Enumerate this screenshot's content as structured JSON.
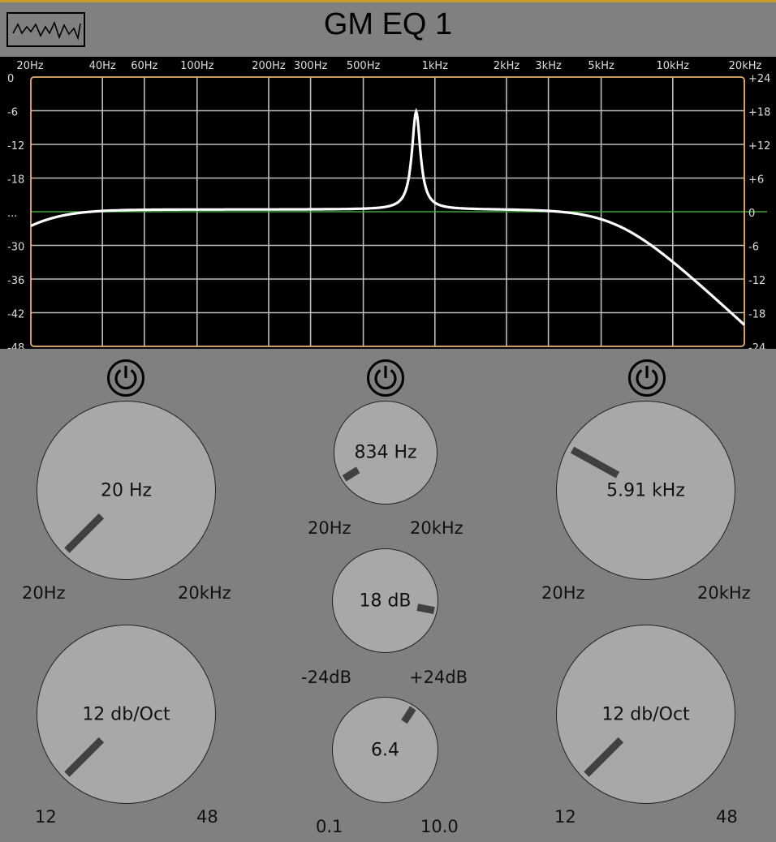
{
  "header": {
    "title": "GM EQ 1",
    "logo_icon": "waveform-icon"
  },
  "graph": {
    "freq_labels": [
      "20Hz",
      "40Hz",
      "60Hz",
      "100Hz",
      "200Hz",
      "300Hz",
      "500Hz",
      "1kHz",
      "2kHz",
      "3kHz",
      "5kHz",
      "10kHz",
      "20kHz"
    ],
    "db_left_labels": [
      "0",
      "-6",
      "-12",
      "-18",
      "...",
      "-30",
      "-36",
      "-42",
      "-48"
    ],
    "db_right_labels": [
      "+24",
      "+18",
      "+12",
      "+6",
      "0",
      "-6",
      "-12",
      "-18",
      "-24"
    ],
    "colors": {
      "grid": "#bdbdbd",
      "curve": "#ffffff",
      "zero_line": "#3aa63a",
      "frame": "#e8b070",
      "background": "#000000"
    }
  },
  "bands": {
    "low": {
      "power_icon": "power-icon",
      "freq": {
        "value": "20 Hz",
        "min": "20Hz",
        "max": "20kHz"
      },
      "slope": {
        "value": "12 db/Oct",
        "min": "12",
        "max": "48"
      }
    },
    "mid": {
      "power_icon": "power-icon",
      "freq": {
        "value": "834 Hz",
        "min": "20Hz",
        "max": "20kHz"
      },
      "gain": {
        "value": "18 dB",
        "min": "-24dB",
        "max": "+24dB"
      },
      "q": {
        "value": "6.4",
        "min": "0.1",
        "max": "10.0"
      }
    },
    "high": {
      "power_icon": "power-icon",
      "freq": {
        "value": "5.91 kHz",
        "min": "20Hz",
        "max": "20kHz"
      },
      "slope": {
        "value": "12 db/Oct",
        "min": "12",
        "max": "48"
      }
    }
  }
}
